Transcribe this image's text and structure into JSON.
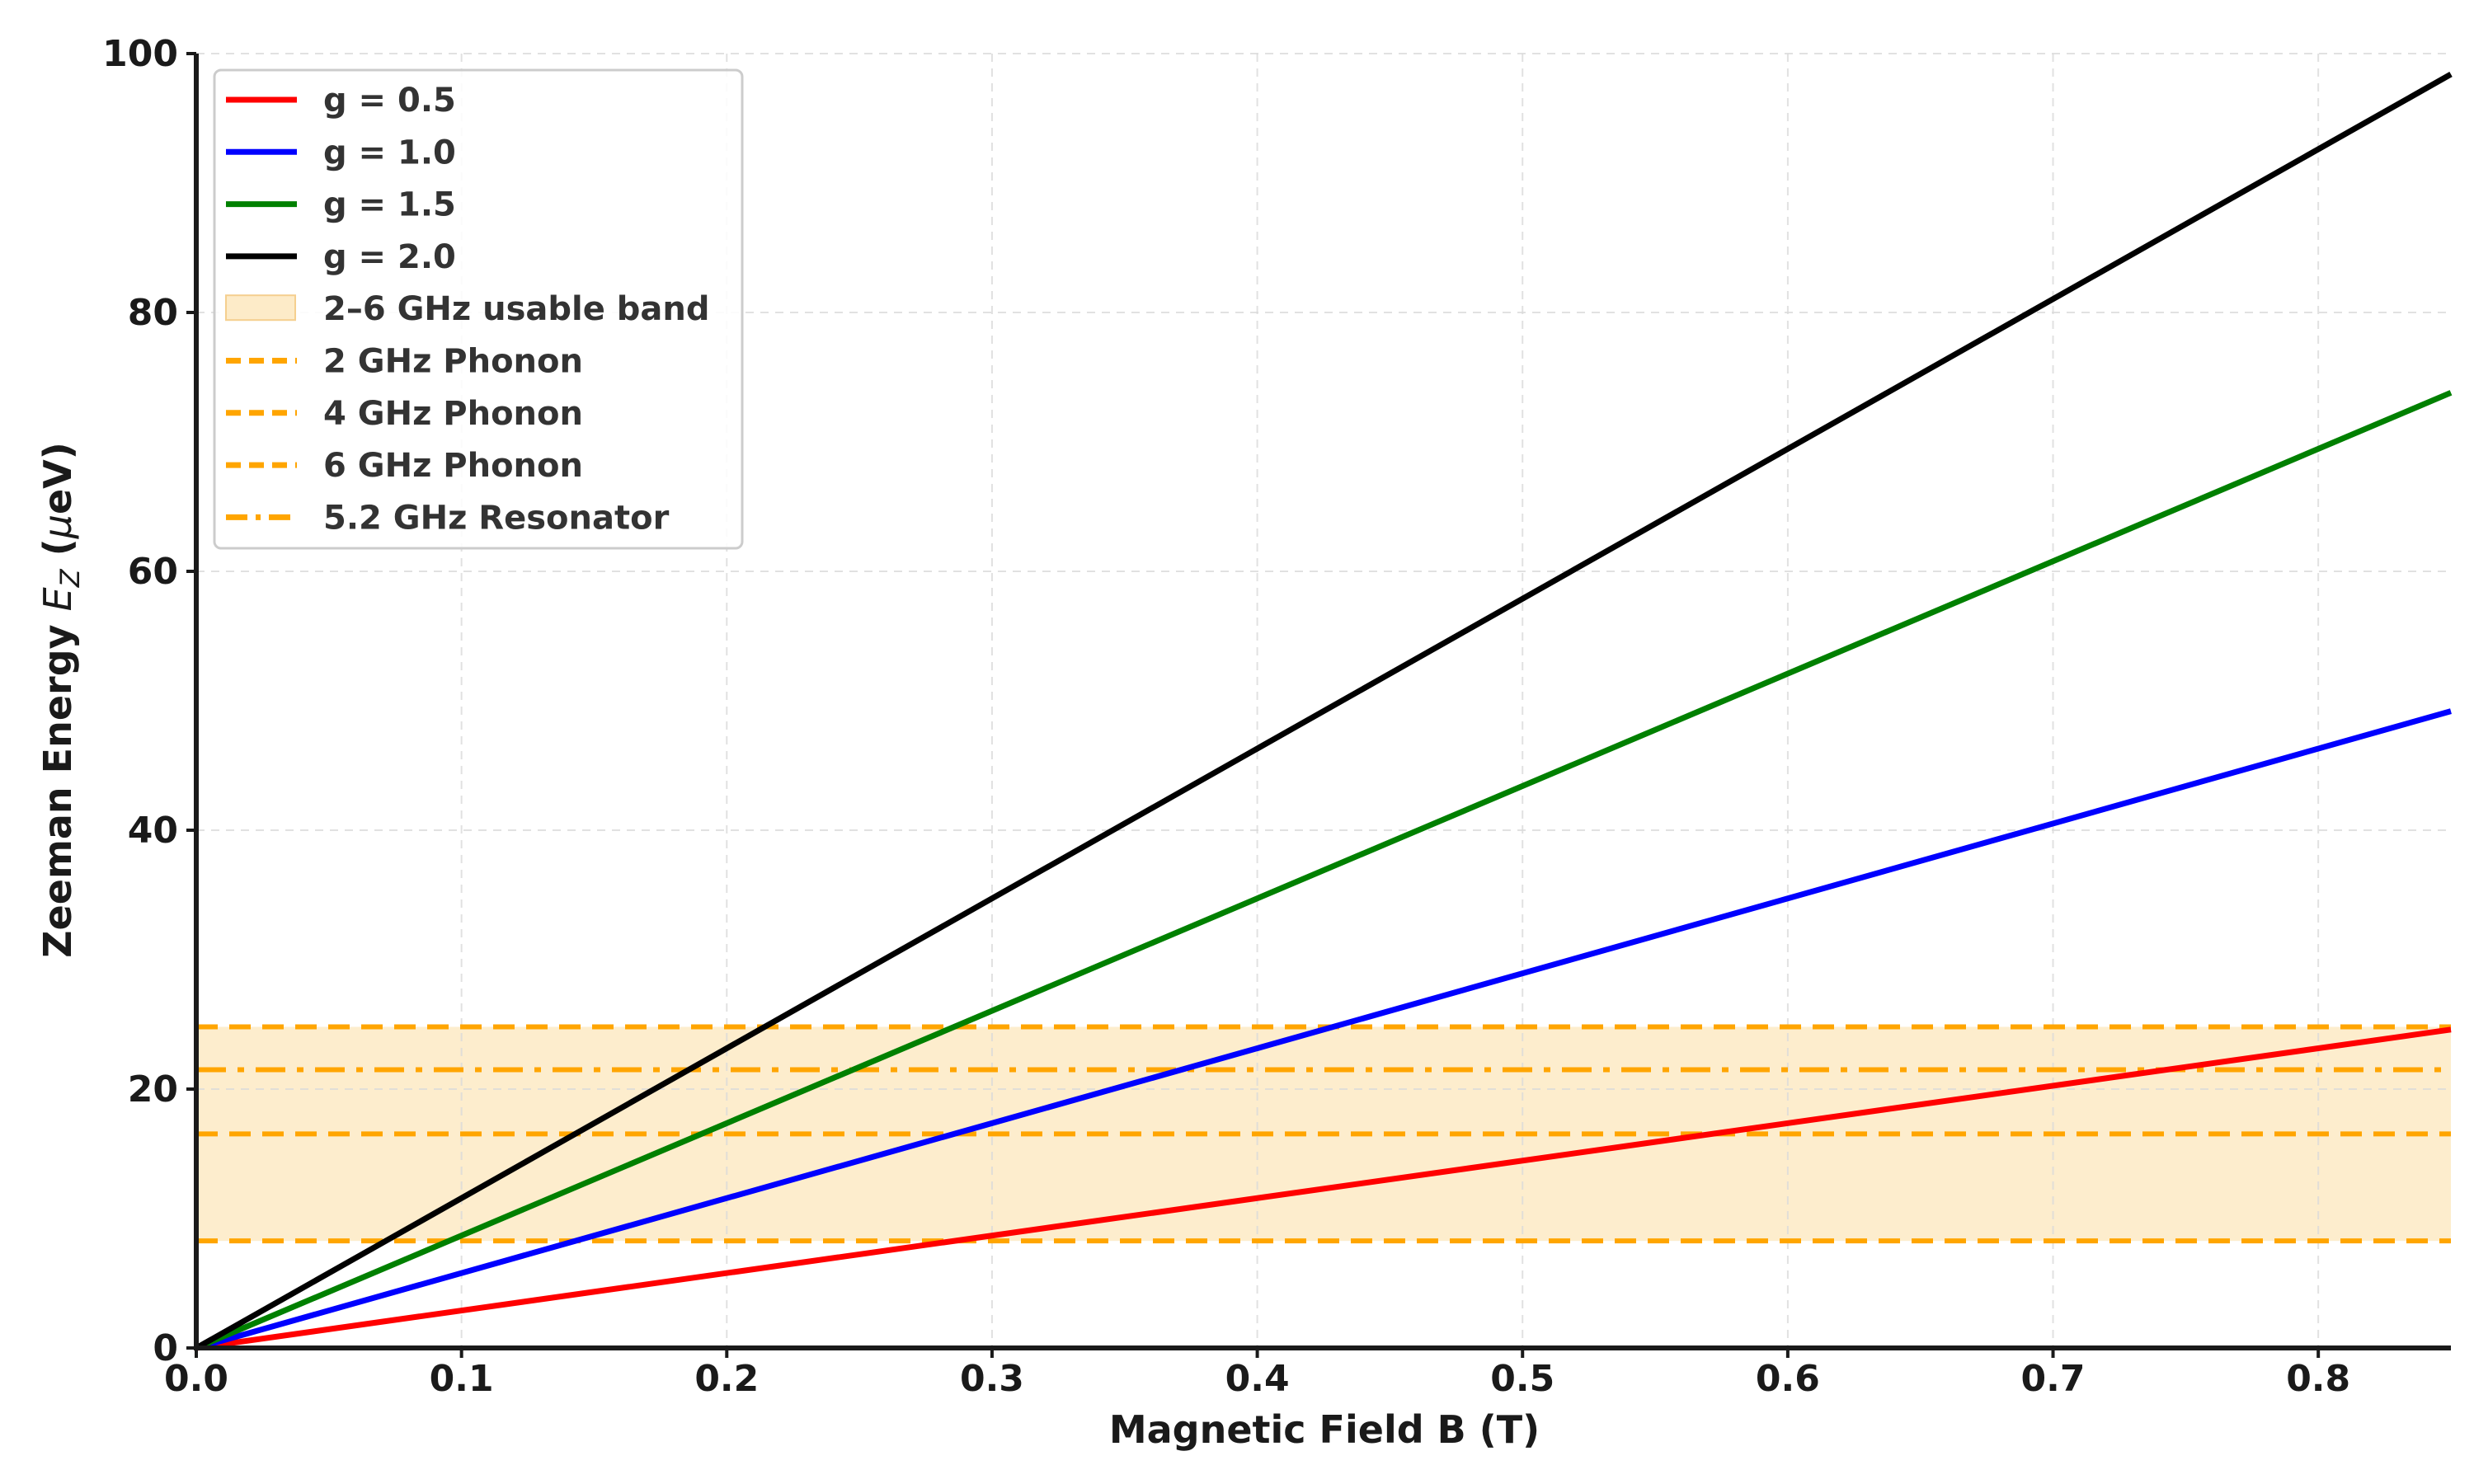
{
  "chart_data": {
    "type": "line",
    "xlabel": "Magnetic Field B (T)",
    "ylabel_prefix": "Zeeman Energy ",
    "ylabel_var": "E",
    "ylabel_sub": "Z",
    "ylabel_unit_open": " (",
    "ylabel_unit_mu": "μ",
    "ylabel_unit_rest": "eV)",
    "xlim": [
      0,
      0.85
    ],
    "ylim": [
      0,
      100
    ],
    "x_ticks": [
      {
        "value": 0.0,
        "label": "0.0"
      },
      {
        "value": 0.1,
        "label": "0.1"
      },
      {
        "value": 0.2,
        "label": "0.2"
      },
      {
        "value": 0.3,
        "label": "0.3"
      },
      {
        "value": 0.4,
        "label": "0.4"
      },
      {
        "value": 0.5,
        "label": "0.5"
      },
      {
        "value": 0.6,
        "label": "0.6"
      },
      {
        "value": 0.7,
        "label": "0.7"
      },
      {
        "value": 0.8,
        "label": "0.8"
      }
    ],
    "y_ticks": [
      {
        "value": 0,
        "label": "0"
      },
      {
        "value": 20,
        "label": "20"
      },
      {
        "value": 40,
        "label": "40"
      },
      {
        "value": 60,
        "label": "60"
      },
      {
        "value": 80,
        "label": "80"
      },
      {
        "value": 100,
        "label": "100"
      }
    ],
    "grid": true,
    "legend_position": "top-left",
    "series": [
      {
        "name": "g = 0.5",
        "color": "#ff0000",
        "x": [
          0,
          0.85
        ],
        "y": [
          0,
          24.6
        ]
      },
      {
        "name": "g = 1.0",
        "color": "#0000ff",
        "x": [
          0,
          0.85
        ],
        "y": [
          0,
          49.2
        ]
      },
      {
        "name": "g = 1.5",
        "color": "#008000",
        "x": [
          0,
          0.85
        ],
        "y": [
          0,
          73.8
        ]
      },
      {
        "name": "g = 2.0",
        "color": "#000000",
        "x": [
          0,
          0.85
        ],
        "y": [
          0,
          98.4
        ]
      }
    ],
    "band": {
      "name": "2–6 GHz usable band",
      "y_range": [
        8.27,
        24.81
      ],
      "color": "#fdebc8"
    },
    "hlines": [
      {
        "name": "2 GHz Phonon",
        "y": 8.27,
        "style": "dashed",
        "color": "#ffa500"
      },
      {
        "name": "4 GHz Phonon",
        "y": 16.54,
        "style": "dashed",
        "color": "#ffa500"
      },
      {
        "name": "6 GHz Phonon",
        "y": 24.81,
        "style": "dashed",
        "color": "#ffa500"
      },
      {
        "name": "5.2 GHz Resonator",
        "y": 21.5,
        "style": "dashdot",
        "color": "#ffa500"
      }
    ]
  }
}
